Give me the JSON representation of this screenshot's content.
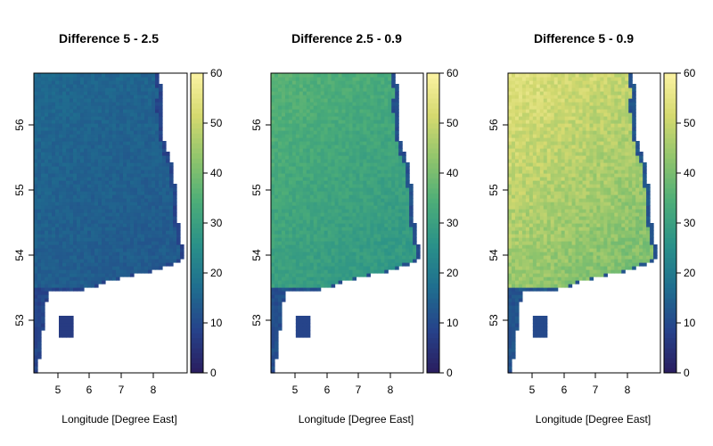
{
  "chart_data": [
    {
      "type": "heatmap",
      "title": "Difference 5 - 2.5",
      "xlabel": "Longitude [Degree East]",
      "ylabel": "",
      "xlim": [
        4.3,
        8.9
      ],
      "ylim": [
        52.2,
        56.8
      ],
      "x_ticks": [
        "5",
        "6",
        "7",
        "8"
      ],
      "y_ticks": [
        "53",
        "54",
        "55",
        "56"
      ],
      "colorbar": {
        "min": 0,
        "max": 60,
        "ticks": [
          "0",
          "10",
          "20",
          "30",
          "40",
          "50",
          "60"
        ]
      },
      "field": {
        "base": 13,
        "n_gradient": 2,
        "coast_value": 7,
        "coast_width": 0.12,
        "noise": 1.6
      },
      "grid": false,
      "legend_position": "right"
    },
    {
      "type": "heatmap",
      "title": "Difference 2.5 - 0.9",
      "xlabel": "Longitude [Degree East]",
      "ylabel": "",
      "xlim": [
        4.3,
        8.9
      ],
      "ylim": [
        52.2,
        56.8
      ],
      "x_ticks": [
        "5",
        "6",
        "7",
        "8"
      ],
      "y_ticks": [
        "53",
        "54",
        "55",
        "56"
      ],
      "colorbar": {
        "min": 0,
        "max": 60,
        "ticks": [
          "0",
          "10",
          "20",
          "30",
          "40",
          "50",
          "60"
        ]
      },
      "field": {
        "base": 27,
        "n_gradient": 6,
        "coast_value": 9,
        "coast_width": 0.12,
        "noise": 2.2
      },
      "grid": false,
      "legend_position": "right"
    },
    {
      "type": "heatmap",
      "title": "Difference 5 - 0.9",
      "xlabel": "Longitude [Degree East]",
      "ylabel": "",
      "xlim": [
        4.3,
        8.9
      ],
      "ylim": [
        52.2,
        56.8
      ],
      "x_ticks": [
        "5",
        "6",
        "7",
        "8"
      ],
      "y_ticks": [
        "53",
        "54",
        "55",
        "56"
      ],
      "colorbar": {
        "min": 0,
        "max": 60,
        "ticks": [
          "0",
          "10",
          "20",
          "30",
          "40",
          "50",
          "60"
        ]
      },
      "field": {
        "base": 39,
        "n_gradient": 10,
        "coast_value": 10,
        "coast_width": 0.12,
        "noise": 3.2
      },
      "grid": false,
      "legend_position": "right"
    }
  ],
  "colors": {
    "scale": [
      "#2a1d5e",
      "#26428a",
      "#1f6e8f",
      "#2a9189",
      "#4cad78",
      "#8fc46c",
      "#d4d96f",
      "#fbf3a2"
    ],
    "coast": "#2b1f74"
  }
}
